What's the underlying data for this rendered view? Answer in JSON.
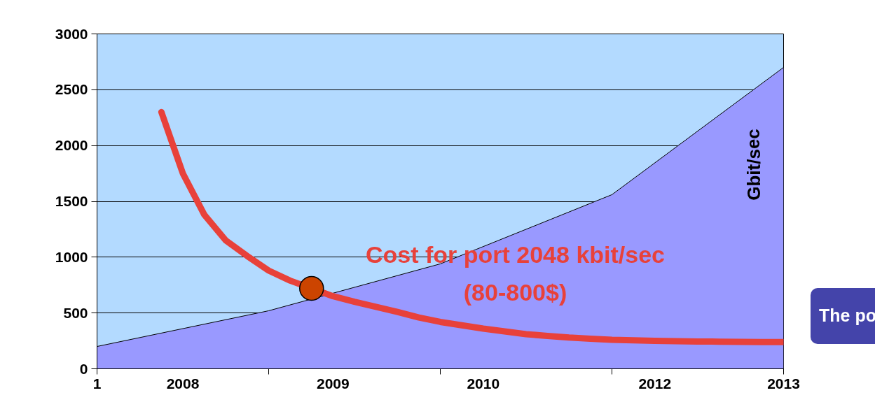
{
  "chart_data": {
    "type": "area",
    "categories": [
      "1",
      null,
      null,
      null,
      "2008",
      null,
      null,
      null,
      null,
      null,
      null,
      "2009",
      null,
      null,
      null,
      null,
      null,
      null,
      "2010",
      null,
      null,
      null,
      null,
      null,
      null,
      null,
      "2012",
      null,
      null,
      null,
      null,
      null,
      "2013"
    ],
    "ylim": [
      0,
      3000
    ],
    "yticks": [
      0,
      500,
      1000,
      1500,
      2000,
      2500,
      3000
    ],
    "grid": "y",
    "annotations": [
      "Gbit/sec",
      "The po"
    ],
    "series": [
      {
        "color": "#9999ff",
        "values": [
          200,
          null,
          null,
          null,
          null,
          null,
          null,
          null,
          520,
          null,
          null,
          null,
          null,
          null,
          null,
          null,
          940,
          null,
          null,
          null,
          null,
          null,
          null,
          null,
          1560,
          null,
          null,
          null,
          null,
          null,
          null,
          null,
          2700
        ]
      },
      {
        "type": "line",
        "name": "Cost for port 2048 kbit/sec\n(80-800$)",
        "color": "#e8413a",
        "values": [
          null,
          null,
          null,
          2300,
          1750,
          1380,
          1150,
          1010,
          880,
          790,
          720,
          650,
          600,
          555,
          510,
          460,
          420,
          390,
          360,
          335,
          310,
          295,
          280,
          270,
          260,
          255,
          250,
          248,
          245,
          243,
          241,
          240,
          240
        ]
      },
      {
        "type": "scatter",
        "color": "#cc4400",
        "marker": "circle",
        "values": [
          null,
          null,
          null,
          null,
          null,
          null,
          null,
          null,
          null,
          null,
          720,
          null,
          null,
          null,
          null,
          null,
          null,
          null,
          null,
          null,
          null,
          null,
          null,
          null,
          null,
          null,
          null,
          null,
          null,
          null,
          null,
          null,
          null
        ]
      }
    ]
  }
}
